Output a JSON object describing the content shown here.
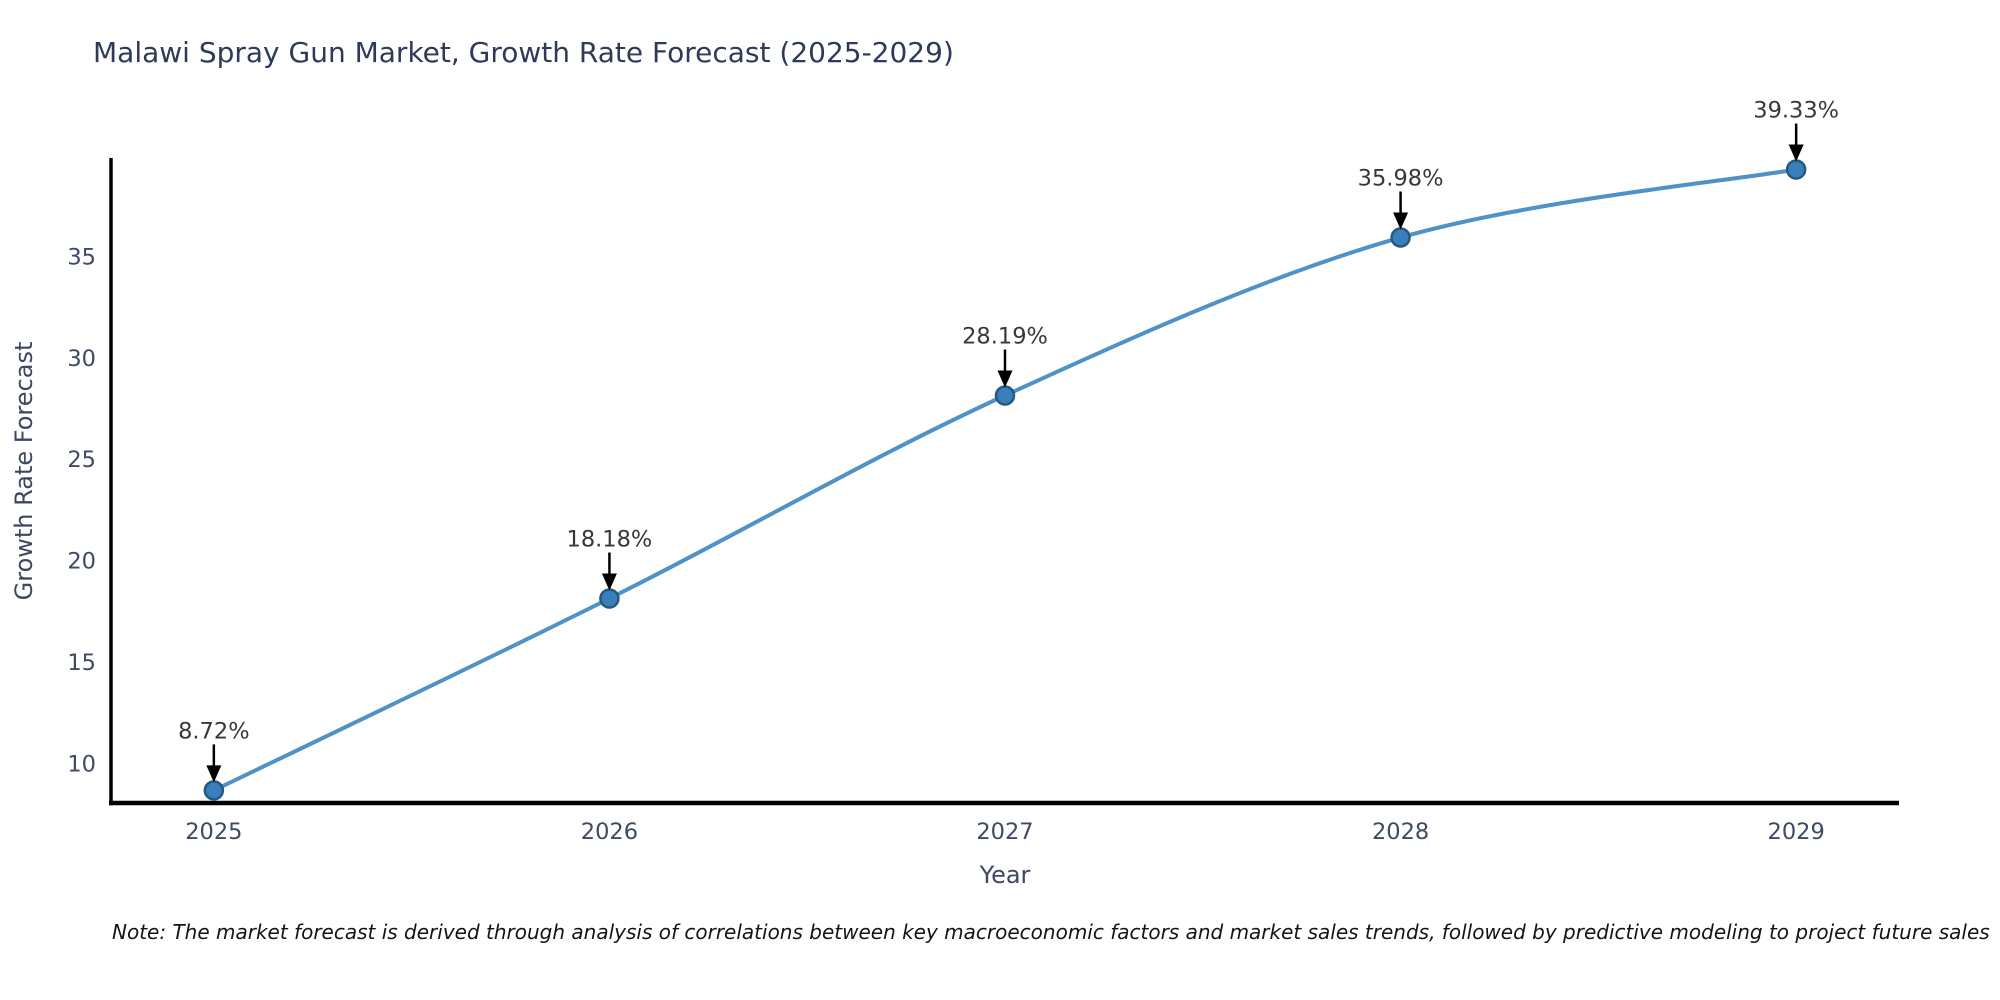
{
  "page": {
    "background": "#ffffff"
  },
  "chart_data": {
    "type": "line",
    "title": "Malawi Spray Gun Market, Growth Rate Forecast (2025-2029)",
    "xlabel": "Year",
    "ylabel": "Growth Rate Forecast",
    "x": [
      2025,
      2026,
      2027,
      2028,
      2029
    ],
    "series": [
      {
        "name": "Growth Rate Forecast",
        "values": [
          8.72,
          18.18,
          28.19,
          35.98,
          39.33
        ]
      }
    ],
    "point_labels": [
      "8.72%",
      "18.18%",
      "28.19%",
      "35.98%",
      "39.33%"
    ],
    "xticks": [
      "2025",
      "2026",
      "2027",
      "2028",
      "2029"
    ],
    "yticks": [
      10,
      15,
      20,
      25,
      30,
      35
    ],
    "xlim": [
      2024.74,
      2029.26
    ],
    "ylim": [
      8.1,
      39.8
    ],
    "grid": false,
    "legend": false,
    "annotation_style": "down-arrow-to-point",
    "line_style": "smooth",
    "marker": "circle",
    "note": "Note: The market forecast is derived through analysis of correlations between key macroeconomic factors and market sales trends, followed by predictive modeling to project future sales",
    "colors": {
      "line": "#4e92c8",
      "marker_fill": "#3a7fbc",
      "marker_edge": "#26597f",
      "spine": "#000000",
      "tick_label": "#3f4a63",
      "title": "#2e3a59",
      "axis_label": "#3d4763",
      "annotation_text": "#383838",
      "arrow": "#000000",
      "note_text": "#141414"
    }
  }
}
